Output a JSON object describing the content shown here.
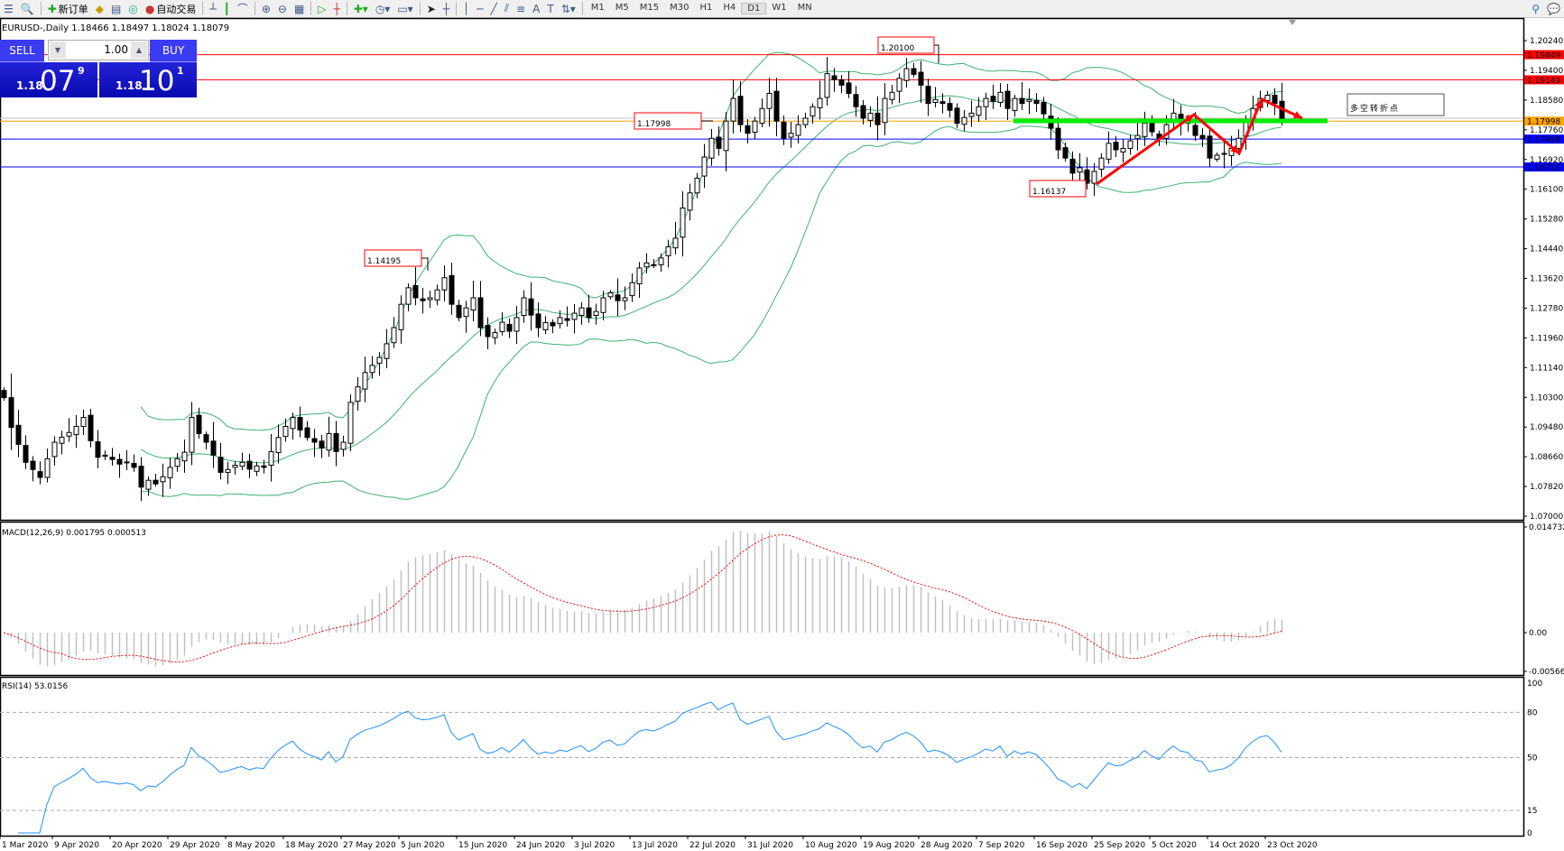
{
  "toolbar": {
    "new_order": "新订单",
    "auto_trading": "自动交易",
    "timeframes": [
      "M1",
      "M5",
      "M15",
      "M30",
      "H1",
      "H4",
      "D1",
      "W1",
      "MN"
    ],
    "active_timeframe": "D1"
  },
  "chart": {
    "title": "EURUSD-,Daily  1.18466 1.18497 1.18024 1.18079"
  },
  "one_click": {
    "sell_label": "SELL",
    "buy_label": "BUY",
    "lot": "1.00",
    "sell_big": "1.18",
    "sell_main": "07",
    "sell_sup": "9",
    "buy_big": "1.18",
    "buy_main": "10",
    "buy_sup": "1"
  },
  "annotations": {
    "high": "1.20100",
    "level": "1.17998",
    "june_high": "1.14195",
    "low": "1.16137",
    "pivot_text": "多空转折点"
  },
  "colors": {
    "bull": "#ffffff",
    "bear": "#000000",
    "bands": "#3cb371",
    "resistance": "#ff0000",
    "support": "#0000ff",
    "pivot": "#00ee00",
    "arrow": "#ff0000",
    "macd_hist": "#c0c0c0",
    "macd_signal": "#ff0000",
    "rsi": "#1e90ff",
    "current_price": "#ffa500"
  },
  "chart_data": {
    "type": "candlestick",
    "symbol": "EURUSD-",
    "period": "Daily",
    "closes": [
      1.103,
      1.0947,
      1.09,
      1.085,
      1.083,
      1.0808,
      1.086,
      1.0906,
      1.092,
      1.0933,
      1.095,
      1.0975,
      1.091,
      1.0864,
      1.087,
      1.0858,
      1.0845,
      1.085,
      1.0836,
      1.0781,
      1.08,
      1.079,
      1.081,
      1.0836,
      1.086,
      1.0878,
      1.0975,
      1.093,
      1.0906,
      1.087,
      1.0822,
      1.083,
      1.0842,
      1.085,
      1.0831,
      1.084,
      1.0836,
      1.088,
      1.0919,
      1.095,
      1.0975,
      1.094,
      1.0919,
      1.0906,
      1.089,
      1.093,
      1.088,
      1.0906,
      1.1017,
      1.106,
      1.11,
      1.112,
      1.1142,
      1.118,
      1.1225,
      1.129,
      1.1336,
      1.1308,
      1.13,
      1.1308,
      1.133,
      1.1364,
      1.129,
      1.1253,
      1.128,
      1.1308,
      1.1225,
      1.12,
      1.1211,
      1.124,
      1.1215,
      1.1253,
      1.1308,
      1.126,
      1.1225,
      1.1239,
      1.123,
      1.1253,
      1.1245,
      1.1265,
      1.128,
      1.1253,
      1.127,
      1.1308,
      1.1322,
      1.13,
      1.1308,
      1.135,
      1.1391,
      1.1405,
      1.14,
      1.1419,
      1.145,
      1.1474,
      1.1558,
      1.16,
      1.1641,
      1.17,
      1.1752,
      1.1724,
      1.18,
      1.1863,
      1.179,
      1.1766,
      1.18,
      1.1835,
      1.1877,
      1.18,
      1.1752,
      1.1766,
      1.179,
      1.1808,
      1.184,
      1.1863,
      1.1932,
      1.1915,
      1.19,
      1.1877,
      1.184,
      1.1808,
      1.1822,
      1.179,
      1.1863,
      1.188,
      1.1919,
      1.1946,
      1.193,
      1.19,
      1.1849,
      1.186,
      1.1849,
      1.183,
      1.1794,
      1.181,
      1.1822,
      1.184,
      1.1863,
      1.1855,
      1.188,
      1.1835,
      1.1863,
      1.1849,
      1.186,
      1.1849,
      1.182,
      1.178,
      1.172,
      1.1697,
      1.1655,
      1.167,
      1.1627,
      1.166,
      1.1697,
      1.1738,
      1.172,
      1.1724,
      1.1745,
      1.176,
      1.1794,
      1.177,
      1.1752,
      1.179,
      1.1822,
      1.18,
      1.1794,
      1.176,
      1.1752,
      1.1697,
      1.1705,
      1.171,
      1.1724,
      1.1752,
      1.18,
      1.1835,
      1.1863,
      1.1872,
      1.1849,
      1.1808
    ],
    "x_tick_labels": [
      "1 Mar 2020",
      "9 Apr 2020",
      "20 Apr 2020",
      "29 Apr 2020",
      "8 May 2020",
      "18 May 2020",
      "27 May 2020",
      "5 Jun 2020",
      "15 Jun 2020",
      "24 Jun 2020",
      "3 Jul 2020",
      "13 Jul 2020",
      "22 Jul 2020",
      "31 Jul 2020",
      "10 Aug 2020",
      "19 Aug 2020",
      "28 Aug 2020",
      "7 Sep 2020",
      "16 Sep 2020",
      "25 Sep 2020",
      "5 Oct 2020",
      "14 Oct 2020",
      "23 Oct 2020"
    ],
    "y_tick_labels": [
      "1.20240",
      "1.19400",
      "1.18580",
      "1.17760",
      "1.16920",
      "1.16100",
      "1.15280",
      "1.14440",
      "1.13620",
      "1.12780",
      "1.11960",
      "1.11140",
      "1.10300",
      "1.09480",
      "1.08660",
      "1.07820",
      "1.07000"
    ],
    "ylim": [
      1.07,
      1.2024
    ],
    "horizontal_lines": [
      {
        "price": "1.19849",
        "color": "#ff0000"
      },
      {
        "price": "1.19149",
        "color": "#ff0000"
      },
      {
        "price": "1.17998",
        "color": "#ffa500"
      },
      {
        "price": "1.17498",
        "color": "#0000ff"
      },
      {
        "price": "1.16722",
        "color": "#0000ff"
      }
    ],
    "bollinger": {
      "period": 20,
      "deviation": 2
    },
    "macd": {
      "label": "MACD(12,26,9) 0.001795 0.000513",
      "y_tick_labels": [
        "0.014732",
        "0.00",
        "-0.005661"
      ],
      "ylim": [
        -0.005661,
        0.014732
      ]
    },
    "rsi": {
      "label": "RSI(14) 53.0156",
      "y_tick_labels": [
        "100",
        "80",
        "50",
        "15",
        "0"
      ],
      "levels": [
        80,
        50,
        15
      ],
      "ylim": [
        0,
        100
      ]
    }
  }
}
